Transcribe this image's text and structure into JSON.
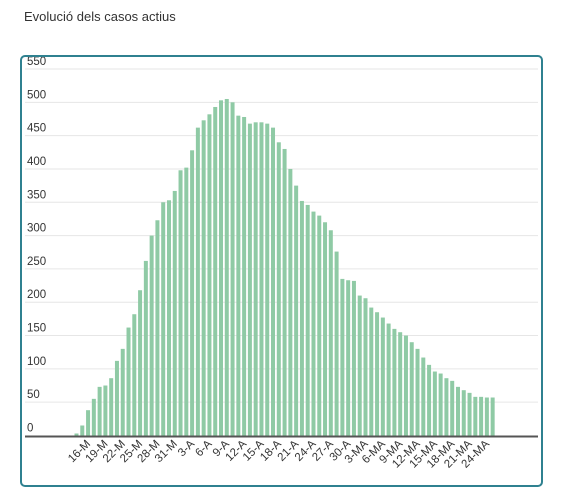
{
  "page": {
    "heading": "Evolució dels casos actius"
  },
  "chart_data": {
    "type": "bar",
    "title": "",
    "xlabel": "",
    "ylabel": "",
    "ylim": [
      0,
      550
    ],
    "yticks": [
      0,
      50,
      100,
      150,
      200,
      250,
      300,
      350,
      400,
      450,
      500,
      550
    ],
    "grid": true,
    "colors": {
      "bar": "#8fcaa5",
      "grid": "#e6e6e6",
      "axis": "#555555",
      "border": "#2f8190"
    },
    "categories": [
      "14-M",
      "15-M",
      "16-M",
      "17-M",
      "18-M",
      "19-M",
      "20-M",
      "21-M",
      "22-M",
      "23-M",
      "24-M",
      "25-M",
      "26-M",
      "27-M",
      "28-M",
      "29-M",
      "30-M",
      "31-M",
      "1-A",
      "2-A",
      "3-A",
      "4-A",
      "5-A",
      "6-A",
      "7-A",
      "8-A",
      "9-A",
      "10-A",
      "11-A",
      "12-A",
      "13-A",
      "14-A",
      "15-A",
      "16-A",
      "17-A",
      "18-A",
      "19-A",
      "20-A",
      "21-A",
      "22-A",
      "23-A",
      "24-A",
      "25-A",
      "26-A",
      "27-A",
      "28-A",
      "29-A",
      "30-A",
      "1-MA",
      "2-MA",
      "3-MA",
      "4-MA",
      "5-MA",
      "6-MA",
      "7-MA",
      "8-MA",
      "9-MA",
      "10-MA",
      "11-MA",
      "12-MA",
      "13-MA",
      "14-MA",
      "15-MA",
      "16-MA",
      "17-MA",
      "18-MA",
      "19-MA",
      "20-MA",
      "21-MA",
      "22-MA",
      "23-MA",
      "24-MA",
      "25-MA"
    ],
    "xtick_labels": [
      "16-M",
      "19-M",
      "22-M",
      "25-M",
      "28-M",
      "31-M",
      "3-A",
      "6-A",
      "9-A",
      "12-A",
      "15-A",
      "18-A",
      "21-A",
      "24-A",
      "27-A",
      "30-A",
      "3-MA",
      "6-MA",
      "9-MA",
      "12-MA",
      "15-MA",
      "18-MA",
      "21-MA",
      "24-MA"
    ],
    "values": [
      3,
      15,
      38,
      55,
      73,
      75,
      86,
      112,
      130,
      162,
      182,
      218,
      262,
      300,
      323,
      350,
      353,
      367,
      398,
      402,
      428,
      462,
      473,
      482,
      493,
      503,
      505,
      500,
      480,
      478,
      468,
      470,
      470,
      468,
      462,
      440,
      430,
      400,
      375,
      352,
      346,
      336,
      330,
      320,
      308,
      276,
      235,
      233,
      232,
      210,
      206,
      192,
      185,
      177,
      168,
      160,
      155,
      150,
      140,
      130,
      117,
      106,
      96,
      93,
      86,
      82,
      73,
      68,
      64,
      58,
      58,
      57,
      57
    ]
  }
}
